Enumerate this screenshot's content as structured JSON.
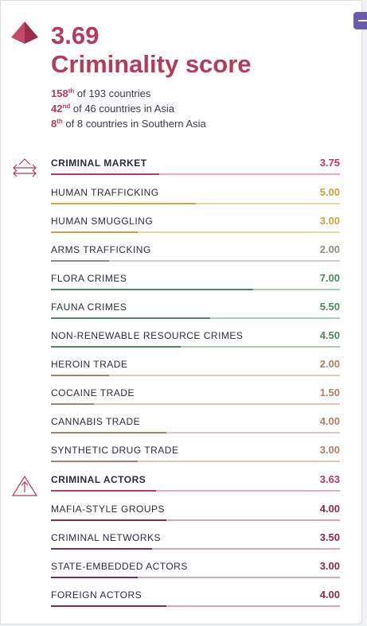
{
  "header": {
    "score": "3.69",
    "title": "Criminality score",
    "ranks": [
      {
        "rank": "158",
        "suffix": "th",
        "text": " of 193 countries"
      },
      {
        "rank": "42",
        "suffix": "nd",
        "text": " of 46 countries in Asia"
      },
      {
        "rank": "8",
        "suffix": "th",
        "text": " of 8 countries in Southern Asia"
      }
    ],
    "accent_color": "#b53a5c"
  },
  "sections": [
    {
      "icon": "market-icon",
      "main": {
        "label": "CRIMINAL MARKET",
        "value": "3.75",
        "fraction": 0.375,
        "color": "#b53a5c",
        "track": "#e4aab8"
      },
      "items": [
        {
          "label": "HUMAN TRAFFICKING",
          "value": "5.00",
          "fraction": 0.5,
          "color": "#c9a43c",
          "track": "#ead79c"
        },
        {
          "label": "HUMAN SMUGGLING",
          "value": "3.00",
          "fraction": 0.3,
          "color": "#c9a43c",
          "track": "#ead79c"
        },
        {
          "label": "ARMS TRAFFICKING",
          "value": "2.00",
          "fraction": 0.2,
          "color": "#8e8e82",
          "track": "#cfcfc6"
        },
        {
          "label": "FLORA CRIMES",
          "value": "7.00",
          "fraction": 0.7,
          "color": "#4e8a5d",
          "track": "#a9cbb0"
        },
        {
          "label": "FAUNA CRIMES",
          "value": "5.50",
          "fraction": 0.55,
          "color": "#4e8a5d",
          "track": "#a9cbb0"
        },
        {
          "label": "NON-RENEWABLE RESOURCE CRIMES",
          "value": "4.50",
          "fraction": 0.45,
          "color": "#4e8a5d",
          "track": "#a9cbb0"
        },
        {
          "label": "HEROIN TRADE",
          "value": "2.00",
          "fraction": 0.2,
          "color": "#b07f68",
          "track": "#e1c8bb"
        },
        {
          "label": "COCAINE TRADE",
          "value": "1.50",
          "fraction": 0.15,
          "color": "#b07f68",
          "track": "#e1c8bb"
        },
        {
          "label": "CANNABIS TRADE",
          "value": "4.00",
          "fraction": 0.4,
          "color": "#b07f68",
          "track": "#e1c8bb"
        },
        {
          "label": "SYNTHETIC DRUG TRADE",
          "value": "3.00",
          "fraction": 0.3,
          "color": "#b07f68",
          "track": "#e1c8bb"
        }
      ]
    },
    {
      "icon": "actors-icon",
      "main": {
        "label": "CRIMINAL ACTORS",
        "value": "3.63",
        "fraction": 0.363,
        "color": "#b53a5c",
        "track": "#e4aab8"
      },
      "items": [
        {
          "label": "MAFIA-STYLE GROUPS",
          "value": "4.00",
          "fraction": 0.4,
          "color": "#8a2a4a",
          "track": "#d9a6b7"
        },
        {
          "label": "CRIMINAL NETWORKS",
          "value": "3.50",
          "fraction": 0.35,
          "color": "#8a2a4a",
          "track": "#d9a6b7"
        },
        {
          "label": "STATE-EMBEDDED ACTORS",
          "value": "3.00",
          "fraction": 0.3,
          "color": "#8a2a4a",
          "track": "#d9a6b7"
        },
        {
          "label": "FOREIGN ACTORS",
          "value": "4.00",
          "fraction": 0.4,
          "color": "#8a2a4a",
          "track": "#d9a6b7"
        }
      ]
    }
  ]
}
